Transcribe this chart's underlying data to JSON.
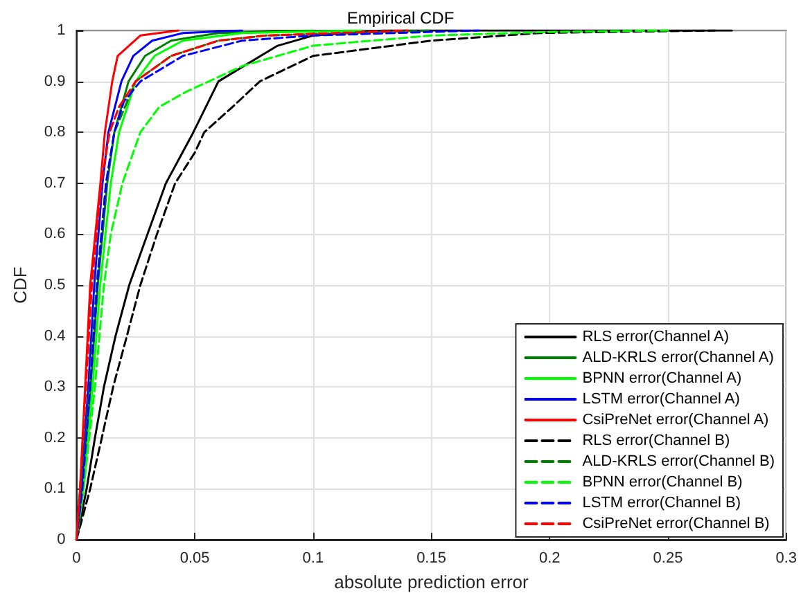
{
  "chart_data": {
    "type": "line",
    "title": "Empirical CDF",
    "xlabel": "absolute prediction error",
    "ylabel": "CDF",
    "xlim": [
      0,
      0.3
    ],
    "ylim": [
      0,
      1
    ],
    "xticks": [
      0,
      0.05,
      0.1,
      0.15,
      0.2,
      0.25,
      0.3
    ],
    "yticks": [
      0,
      0.1,
      0.2,
      0.3,
      0.4,
      0.5,
      0.6,
      0.7,
      0.8,
      0.9,
      1
    ],
    "grid": true,
    "legend": "bottom right",
    "marker": "none",
    "series": [
      {
        "name": "RLS error(Channel A)",
        "color": "#000000",
        "line_style": "solid",
        "x": [
          0,
          0.0043,
          0.0078,
          0.0116,
          0.0165,
          0.0223,
          0.03,
          0.0378,
          0.0494,
          0.06,
          0.085,
          0.1,
          0.13,
          0.277
        ],
        "values": [
          0,
          0.1,
          0.2,
          0.3,
          0.4,
          0.5,
          0.6,
          0.7,
          0.8,
          0.9,
          0.97,
          0.99,
          1,
          1
        ]
      },
      {
        "name": "ALD-KRLS error(Channel A)",
        "color": "#008000",
        "line_style": "solid",
        "x": [
          0,
          0.0025,
          0.006,
          0.009,
          0.013,
          0.016,
          0.022,
          0.029,
          0.04,
          0.06,
          0.1
        ],
        "values": [
          0,
          0.1,
          0.3,
          0.5,
          0.7,
          0.8,
          0.9,
          0.95,
          0.98,
          0.995,
          1
        ]
      },
      {
        "name": "BPNN error(Channel A)",
        "color": "#00ff00",
        "line_style": "solid",
        "x": [
          0,
          0.003,
          0.0068,
          0.01,
          0.0145,
          0.018,
          0.025,
          0.033,
          0.045,
          0.07,
          0.12
        ],
        "values": [
          0,
          0.1,
          0.3,
          0.5,
          0.7,
          0.8,
          0.9,
          0.95,
          0.98,
          0.995,
          1
        ]
      },
      {
        "name": "LSTM error(Channel A)",
        "color": "#0000ff",
        "line_style": "solid",
        "x": [
          0,
          0.002,
          0.005,
          0.0075,
          0.011,
          0.0135,
          0.019,
          0.024,
          0.032,
          0.045,
          0.07
        ],
        "values": [
          0,
          0.1,
          0.3,
          0.5,
          0.7,
          0.8,
          0.9,
          0.95,
          0.98,
          0.995,
          1
        ]
      },
      {
        "name": "CsiPreNet error(Channel A)",
        "color": "#ff0000",
        "line_style": "solid",
        "x": [
          0,
          0.0015,
          0.0058,
          0.0101,
          0.012,
          0.0151,
          0.0174,
          0.027,
          0.043
        ],
        "values": [
          0,
          0.1,
          0.5,
          0.7,
          0.8,
          0.9,
          0.95,
          0.99,
          1
        ]
      },
      {
        "name": "RLS error(Channel B)",
        "color": "#000000",
        "line_style": "dashed",
        "x": [
          0,
          0.0058,
          0.0107,
          0.0155,
          0.0213,
          0.027,
          0.034,
          0.0417,
          0.05,
          0.054,
          0.066,
          0.0775,
          0.1,
          0.15,
          0.196,
          0.27
        ],
        "values": [
          0,
          0.1,
          0.2,
          0.3,
          0.4,
          0.5,
          0.6,
          0.7,
          0.76,
          0.8,
          0.85,
          0.9,
          0.95,
          0.98,
          0.995,
          1
        ]
      },
      {
        "name": "ALD-KRLS error(Channel B)",
        "color": "#008000",
        "line_style": "dashed",
        "x": [
          0,
          0.0022,
          0.0055,
          0.0085,
          0.0125,
          0.016,
          0.025,
          0.04,
          0.06,
          0.08,
          0.15
        ],
        "values": [
          0,
          0.1,
          0.3,
          0.5,
          0.7,
          0.8,
          0.9,
          0.95,
          0.98,
          0.99,
          1
        ]
      },
      {
        "name": "BPNN error(Channel B)",
        "color": "#00ff00",
        "line_style": "dashed",
        "x": [
          0,
          0.003,
          0.0078,
          0.0116,
          0.0145,
          0.0194,
          0.027,
          0.035,
          0.0465,
          0.056,
          0.07,
          0.085,
          0.1,
          0.15,
          0.2,
          0.25
        ],
        "values": [
          0,
          0.1,
          0.3,
          0.5,
          0.6,
          0.7,
          0.8,
          0.85,
          0.88,
          0.9,
          0.93,
          0.95,
          0.97,
          0.99,
          0.997,
          1
        ]
      },
      {
        "name": "LSTM error(Channel B)",
        "color": "#0000ff",
        "line_style": "dashed",
        "x": [
          0,
          0.0025,
          0.0058,
          0.0088,
          0.0125,
          0.016,
          0.02,
          0.027,
          0.045,
          0.07,
          0.1,
          0.17
        ],
        "values": [
          0,
          0.1,
          0.3,
          0.5,
          0.7,
          0.8,
          0.86,
          0.9,
          0.95,
          0.98,
          0.99,
          1
        ]
      },
      {
        "name": "CsiPreNet error(Channel B)",
        "color": "#ff0000",
        "line_style": "dashed",
        "x": [
          0,
          0.0015,
          0.004,
          0.0065,
          0.0105,
          0.014,
          0.018,
          0.025,
          0.04,
          0.06,
          0.08,
          0.14
        ],
        "values": [
          0,
          0.1,
          0.3,
          0.5,
          0.7,
          0.8,
          0.85,
          0.9,
          0.95,
          0.98,
          0.99,
          1
        ]
      }
    ]
  }
}
